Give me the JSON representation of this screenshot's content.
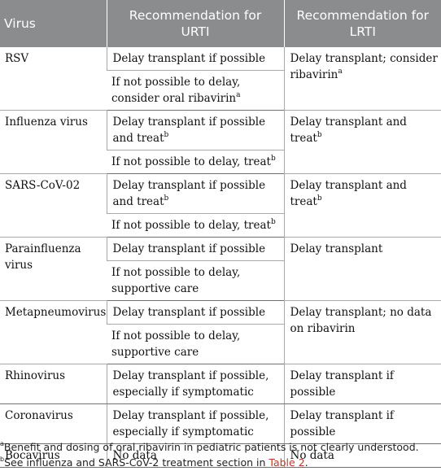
{
  "header": {
    "col1": "Virus",
    "col2": "Recommendation for URTI",
    "col3": "Recommendation for LRTI"
  },
  "rows": [
    {
      "virus": "RSV",
      "urti": [
        {
          "text": "Delay transplant if possible",
          "sup": ""
        },
        {
          "text": "If not possible to delay, consider oral ribavirin",
          "sup": "a"
        }
      ],
      "lrti": {
        "text": "Delay transplant; consider ribavirin",
        "sup": "a"
      }
    },
    {
      "virus": "Influenza virus",
      "urti": [
        {
          "text": "Delay transplant if possible and treat",
          "sup": "b"
        },
        {
          "text": "If not possible to delay, treat",
          "sup": "b"
        }
      ],
      "lrti": {
        "text": "Delay transplant and treat",
        "sup": "b"
      }
    },
    {
      "virus": "SARS-CoV-02",
      "urti": [
        {
          "text": "Delay transplant if possible and treat",
          "sup": "b"
        },
        {
          "text": "If not possible to delay, treat",
          "sup": "b"
        }
      ],
      "lrti": {
        "text": "Delay transplant and treat",
        "sup": "b"
      }
    },
    {
      "virus": "Parainfluenza virus",
      "urti": [
        {
          "text": "Delay transplant if possible",
          "sup": ""
        },
        {
          "text": "If not possible to delay, supportive care",
          "sup": ""
        }
      ],
      "lrti": {
        "text": "Delay transplant",
        "sup": ""
      }
    },
    {
      "virus": "Metapneumovirus",
      "urti": [
        {
          "text": "Delay transplant if possible",
          "sup": ""
        },
        {
          "text": "If not possible to delay, supportive care",
          "sup": ""
        }
      ],
      "lrti": {
        "text": "Delay transplant; no data on ribavirin",
        "sup": ""
      }
    },
    {
      "virus": "Rhinovirus",
      "urti": [
        {
          "text": "Delay transplant if possible, especially if symptomatic",
          "sup": ""
        }
      ],
      "lrti": {
        "text": "Delay transplant if possible",
        "sup": ""
      }
    },
    {
      "virus": "Coronavirus",
      "urti": [
        {
          "text": "Delay transplant if possible, especially if symptomatic",
          "sup": ""
        }
      ],
      "lrti": {
        "text": "Delay transplant if possible",
        "sup": ""
      }
    },
    {
      "virus": "Bocavirus",
      "urti": [
        {
          "text": "No data",
          "sup": ""
        }
      ],
      "lrti": {
        "text": "No data",
        "sup": ""
      }
    }
  ],
  "footnotes": {
    "a": {
      "mark": "a",
      "text": "Benefit and dosing of oral ribavirin in pediatric patients is not clearly understood."
    },
    "b": {
      "mark": "b",
      "text": "See influenza and SARS-CoV-2 treatment section in ",
      "link": "Table 2",
      "end": "."
    }
  }
}
